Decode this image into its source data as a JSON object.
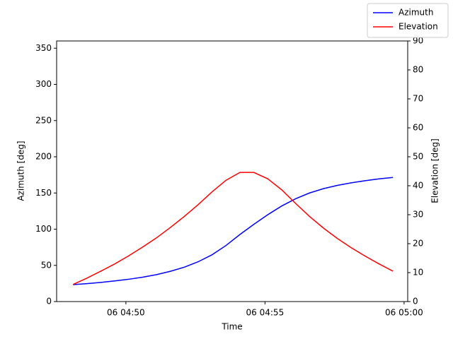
{
  "chart_data": {
    "type": "line",
    "x_label": "Time",
    "y_label": "Azimuth [deg]",
    "y2_label": "Elevation [deg]",
    "x": [
      48.1,
      48.6,
      49.1,
      49.6,
      50.1,
      50.6,
      51.1,
      51.6,
      52.1,
      52.6,
      53.1,
      53.6,
      54.1,
      54.6,
      55.1,
      55.6,
      56.1,
      56.6,
      57.1,
      57.6,
      58.1,
      58.6,
      59.1,
      59.6
    ],
    "xlim": [
      47.51,
      60.13
    ],
    "xticks": [
      {
        "value": 50,
        "label": "06 04:50"
      },
      {
        "value": 55,
        "label": "06 04:55"
      },
      {
        "value": 60,
        "label": "06 05:00"
      }
    ],
    "ylim": [
      0,
      360
    ],
    "yticks": [
      0,
      50,
      100,
      150,
      200,
      250,
      300,
      350
    ],
    "y2lim": [
      0,
      90
    ],
    "y2ticks": [
      0,
      10,
      20,
      30,
      40,
      50,
      60,
      70,
      80,
      90
    ],
    "legend": "upper right",
    "series": [
      {
        "name": "Azimuth",
        "color": "#0000ff",
        "values": [
          23.4,
          24.8,
          26.5,
          28.5,
          30.8,
          33.7,
          37.2,
          41.8,
          47.5,
          55,
          64.7,
          77.5,
          92.7,
          106.7,
          120,
          132,
          142,
          150,
          156,
          160.5,
          164,
          167,
          169.5,
          171.5
        ]
      },
      {
        "name": "Elevation",
        "color": "#ff0000",
        "axis": "y2",
        "values": [
          5.9,
          8.1,
          10.5,
          13.0,
          15.8,
          18.8,
          22.0,
          25.6,
          29.4,
          33.5,
          37.9,
          41.9,
          44.6,
          44.6,
          42.4,
          38.6,
          33.9,
          29.4,
          25.4,
          21.8,
          18.6,
          15.7,
          13.0,
          10.5
        ]
      }
    ]
  }
}
